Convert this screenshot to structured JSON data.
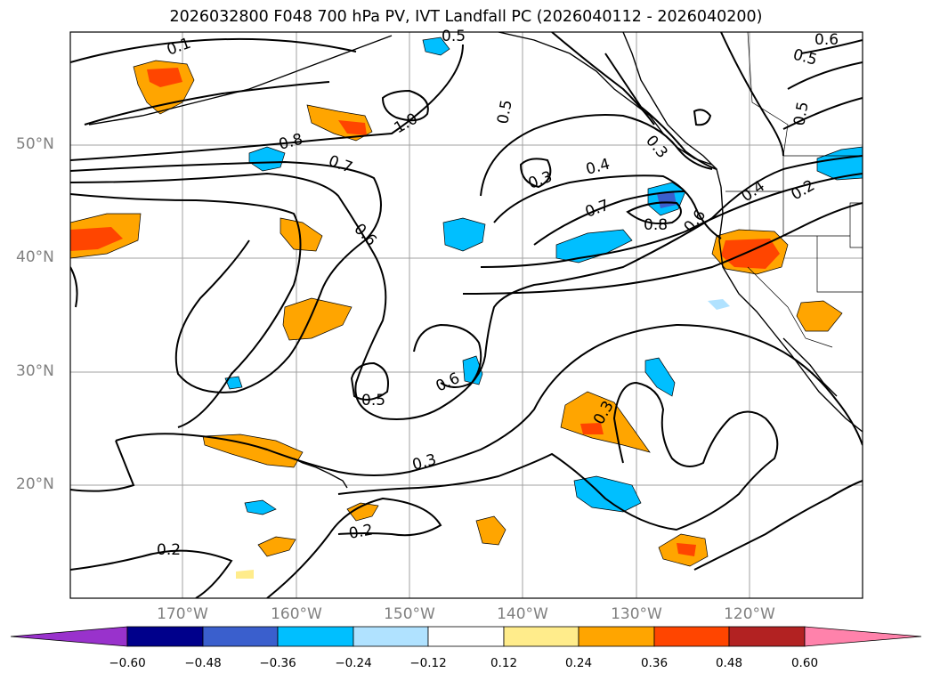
{
  "title": "2026032800 F048 700 hPa PV, IVT Landfall PC (2026040112 - 2026040200)",
  "lat_labels": [
    "50°N",
    "40°N",
    "30°N",
    "20°N"
  ],
  "lon_labels": [
    "170°W",
    "160°W",
    "150°W",
    "140°W",
    "130°W",
    "120°W"
  ],
  "contour_labels": [
    "0.1",
    "0.5",
    "0.6",
    "0.5",
    "0.5",
    "0.5",
    "1.0",
    "0.8",
    "0.7",
    "0.6",
    "0.3",
    "0.3",
    "0.4",
    "0.7",
    "0.8",
    "0.6",
    "0.4",
    "0.2",
    "0.5",
    "0.6",
    "0.3",
    "0.3",
    "0.2",
    "0.2"
  ],
  "colorbar": {
    "ticks": [
      "−0.60",
      "−0.48",
      "−0.36",
      "−0.24",
      "−0.12",
      "0.12",
      "0.24",
      "0.36",
      "0.48",
      "0.60"
    ],
    "colors": [
      "#9932cc",
      "#00008b",
      "#3a5fcd",
      "#00bfff",
      "#b0e2ff",
      "#ffffff",
      "#ffec8b",
      "#ffa500",
      "#ff4500",
      "#b22222",
      "#ff82ab"
    ]
  },
  "shading_colors": {
    "pos_light": "#ffec8b",
    "pos_mid": "#ffa500",
    "pos_strong": "#ff4500",
    "neg_light": "#b0e2ff",
    "neg_mid": "#00bfff",
    "neg_strong": "#3a5fcd"
  }
}
